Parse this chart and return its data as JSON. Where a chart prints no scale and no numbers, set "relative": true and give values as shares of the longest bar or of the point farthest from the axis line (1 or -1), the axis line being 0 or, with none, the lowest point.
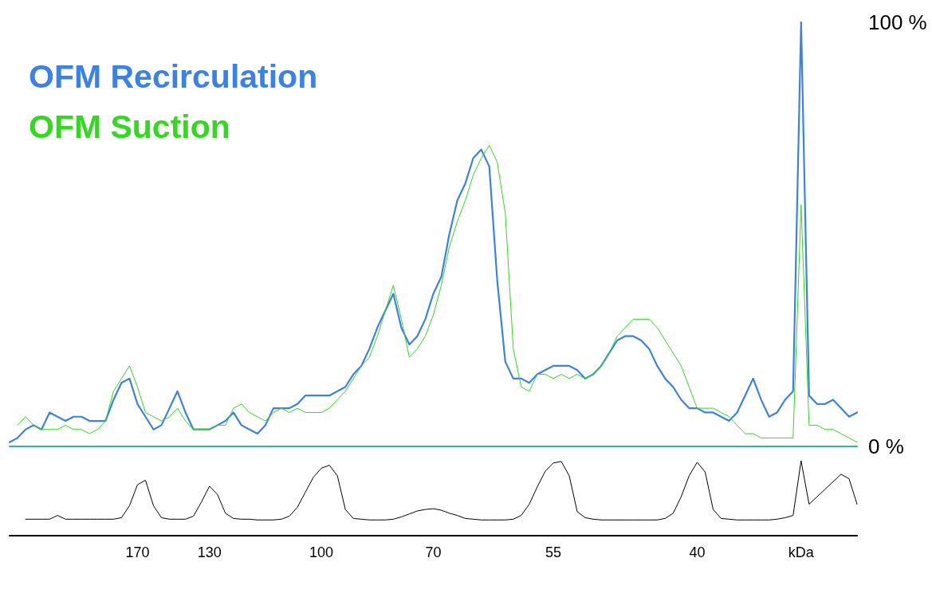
{
  "chart_data": [
    {
      "type": "line",
      "categories": [
        null,
        null,
        null,
        null,
        null,
        null,
        null,
        null,
        null,
        null,
        null,
        null,
        null,
        null,
        null,
        null,
        null,
        null,
        null,
        null,
        null,
        null,
        null,
        null,
        null,
        null,
        null,
        null,
        null,
        null,
        null,
        null,
        null,
        null,
        null,
        null,
        null,
        null,
        null,
        null,
        null,
        null,
        null,
        null,
        null,
        null,
        null,
        null,
        null,
        null,
        null,
        null,
        null,
        null,
        null,
        null,
        null,
        null,
        null,
        null,
        null,
        null,
        null,
        null,
        null,
        null,
        null,
        null,
        null,
        null,
        null,
        null,
        null,
        null,
        null,
        null,
        null,
        null,
        null,
        null,
        null,
        null,
        null,
        null,
        null,
        null,
        null,
        null,
        null,
        null,
        null,
        null,
        null,
        null,
        null,
        null,
        null,
        null,
        null,
        null,
        null,
        null,
        null,
        null,
        null,
        null,
        null
      ],
      "series": [
        {
          "name": "OFM Recirculation",
          "color": "#3b82e6",
          "values": [
            1,
            2,
            4,
            5,
            4,
            8,
            7,
            6,
            7,
            7,
            6,
            6,
            6,
            11,
            15,
            16,
            10,
            7,
            4,
            5,
            9,
            13,
            8,
            4,
            4,
            4,
            5,
            6,
            8,
            5,
            4,
            3,
            5,
            9,
            9,
            9,
            10,
            12,
            12,
            12,
            12,
            13,
            14,
            17,
            19,
            23,
            28,
            32,
            36,
            28,
            24,
            26,
            30,
            36,
            40,
            50,
            58,
            62,
            68,
            70,
            66,
            39,
            20,
            16,
            16,
            15,
            17,
            18,
            19,
            19,
            19,
            18,
            16,
            17,
            19,
            22,
            25,
            26,
            26,
            25,
            23,
            19,
            16,
            14,
            11,
            9,
            9,
            8,
            8,
            7,
            6,
            8,
            12,
            16,
            11,
            7,
            8,
            11,
            13,
            100,
            12,
            10,
            10,
            11,
            9,
            7,
            8
          ]
        },
        {
          "name": "OFM Suction",
          "color": "#33d91f",
          "values": [
            null,
            5,
            7,
            5,
            4,
            4,
            4,
            5,
            4,
            4,
            3,
            4,
            6,
            13,
            16,
            19,
            14,
            8,
            7,
            6,
            7,
            9,
            6,
            4,
            4,
            4,
            5,
            5,
            9,
            10,
            8,
            7,
            6,
            8,
            9,
            8,
            9,
            8,
            8,
            8,
            9,
            11,
            13,
            16,
            19,
            21,
            26,
            32,
            38,
            30,
            21,
            23,
            26,
            31,
            38,
            47,
            53,
            58,
            64,
            68,
            71,
            67,
            55,
            23,
            14,
            13,
            17,
            17,
            16,
            17,
            16,
            17,
            16,
            17,
            19,
            22,
            26,
            28,
            30,
            30,
            30,
            28,
            25,
            22,
            19,
            14,
            9,
            9,
            9,
            8,
            7,
            5,
            3,
            3,
            2,
            2,
            2,
            2,
            2,
            57,
            5,
            5,
            4,
            4,
            3,
            2,
            1
          ]
        }
      ],
      "ylim": [
        0,
        100
      ],
      "yticks": [
        {
          "value": 0,
          "label": "0 %"
        },
        {
          "value": 100,
          "label": "100 %"
        }
      ],
      "tick_labels": "y",
      "legend": "top left",
      "marker": "none",
      "grid": false
    },
    {
      "type": "line",
      "relative": true,
      "categories": [
        null,
        null,
        null,
        null,
        null,
        null,
        null,
        null,
        null,
        null,
        null,
        null,
        null,
        null,
        null,
        null,
        "170",
        null,
        null,
        null,
        null,
        null,
        null,
        null,
        null,
        "130",
        null,
        null,
        null,
        null,
        null,
        null,
        null,
        null,
        null,
        null,
        null,
        null,
        null,
        "100",
        null,
        null,
        null,
        null,
        null,
        null,
        null,
        null,
        null,
        null,
        null,
        null,
        null,
        "70",
        null,
        null,
        null,
        null,
        null,
        null,
        null,
        null,
        null,
        null,
        null,
        null,
        null,
        null,
        "55",
        null,
        null,
        null,
        null,
        null,
        null,
        null,
        null,
        null,
        null,
        null,
        null,
        null,
        null,
        null,
        null,
        null,
        "40",
        null,
        null,
        null,
        null,
        null,
        null,
        null,
        null,
        null,
        null,
        null,
        null,
        "kDa",
        null,
        null,
        null,
        null,
        null,
        null,
        null
      ],
      "series": [
        {
          "color": "#000000",
          "values": [
            null,
            null,
            0.22,
            0.22,
            0.22,
            0.22,
            0.27,
            0.22,
            0.22,
            0.22,
            0.22,
            0.22,
            0.22,
            0.22,
            0.24,
            0.4,
            0.68,
            0.74,
            0.4,
            0.24,
            0.22,
            0.22,
            0.22,
            0.26,
            0.45,
            0.66,
            0.55,
            0.3,
            0.23,
            0.22,
            0.22,
            0.21,
            0.21,
            0.21,
            0.22,
            0.26,
            0.38,
            0.58,
            0.78,
            0.9,
            0.94,
            0.8,
            0.35,
            0.23,
            0.22,
            0.21,
            0.21,
            0.21,
            0.22,
            0.25,
            0.29,
            0.33,
            0.35,
            0.36,
            0.34,
            0.3,
            0.27,
            0.23,
            0.22,
            0.21,
            0.21,
            0.21,
            0.21,
            0.22,
            0.27,
            0.42,
            0.65,
            0.86,
            0.97,
            0.99,
            0.8,
            0.32,
            0.24,
            0.22,
            0.21,
            0.21,
            0.21,
            0.21,
            0.21,
            0.21,
            0.21,
            0.21,
            0.23,
            0.3,
            0.52,
            0.8,
            0.98,
            0.85,
            0.35,
            0.23,
            0.22,
            0.21,
            0.21,
            0.21,
            0.21,
            0.21,
            0.22,
            0.24,
            0.27,
            1.0,
            0.42,
            0.52,
            0.62,
            0.72,
            0.82,
            0.76,
            0.42
          ]
        }
      ],
      "tick_labels": "x",
      "marker": "none",
      "grid": false
    }
  ]
}
